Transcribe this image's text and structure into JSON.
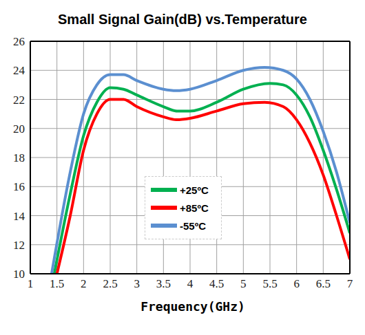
{
  "chart_data": {
    "type": "line",
    "title": "Small Signal Gain(dB) vs.Temperature",
    "x_label": "Frequency(GHz)",
    "xlim": [
      1,
      7
    ],
    "xticks": [
      1,
      1.5,
      2,
      2.5,
      3,
      3.5,
      4,
      4.5,
      5,
      5.5,
      6,
      6.5,
      7
    ],
    "ylim": [
      10,
      26
    ],
    "yticks": [
      10,
      12,
      14,
      16,
      18,
      20,
      22,
      24,
      26
    ],
    "grid": true,
    "legend": "center",
    "series": [
      {
        "name": "+25ºC",
        "color": "#00b050",
        "x": [
          1.45,
          1.75,
          2,
          2.25,
          2.5,
          2.75,
          3,
          3.5,
          3.75,
          4,
          4.5,
          5,
          5.5,
          5.75,
          6,
          6.25,
          6.5,
          6.75,
          7
        ],
        "values": [
          10,
          15.5,
          19.5,
          21.8,
          22.8,
          22.7,
          22.3,
          21.5,
          21.2,
          21.2,
          21.8,
          22.7,
          23.1,
          23,
          22.3,
          20.8,
          18.5,
          15.8,
          12.8
        ]
      },
      {
        "name": "+85ºC",
        "color": "#ff0000",
        "x": [
          1.5,
          1.75,
          2,
          2.25,
          2.5,
          2.75,
          3,
          3.5,
          3.75,
          4,
          4.5,
          5,
          5.4,
          5.75,
          6,
          6.25,
          6.5,
          6.75,
          7
        ],
        "values": [
          10,
          14,
          18.5,
          21,
          22,
          22,
          21.5,
          20.8,
          20.6,
          20.7,
          21.2,
          21.7,
          21.8,
          21.5,
          20.6,
          19,
          16.8,
          14,
          11
        ]
      },
      {
        "name": "-55ºC",
        "color": "#5b8fd0",
        "x": [
          1.4,
          1.75,
          2,
          2.25,
          2.5,
          2.75,
          3,
          3.5,
          3.75,
          4,
          4.5,
          5,
          5.4,
          5.75,
          6,
          6.25,
          6.5,
          6.75,
          7
        ],
        "values": [
          10,
          17,
          21,
          23,
          23.7,
          23.7,
          23.3,
          22.7,
          22.6,
          22.7,
          23.3,
          24,
          24.2,
          24,
          23.4,
          22,
          19.8,
          17,
          13.5
        ]
      }
    ]
  }
}
